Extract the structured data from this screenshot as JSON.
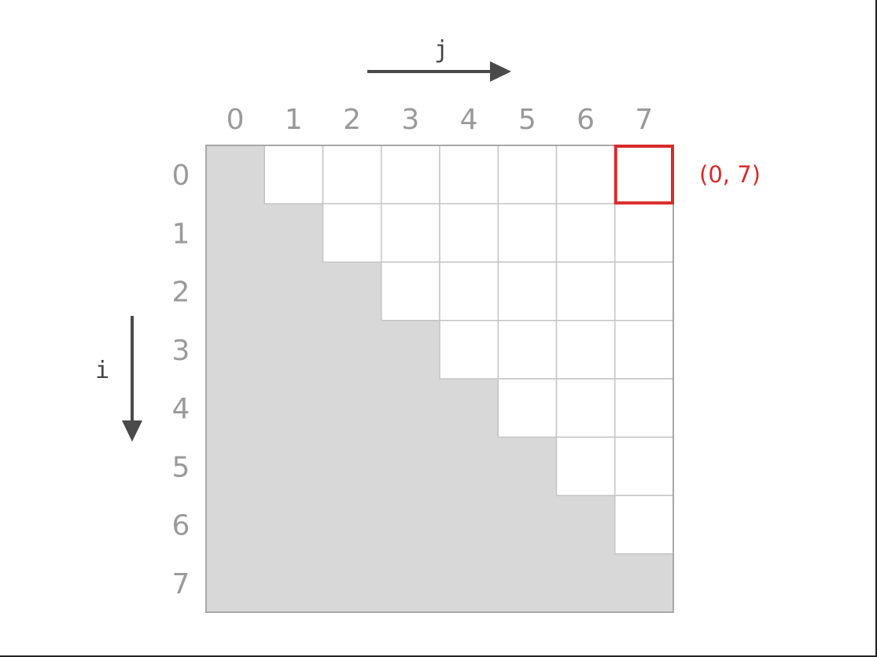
{
  "diagram": {
    "j_label": "j",
    "i_label": "i",
    "column_labels": [
      "0",
      "1",
      "2",
      "3",
      "4",
      "5",
      "6",
      "7"
    ],
    "row_labels": [
      "0",
      "1",
      "2",
      "3",
      "4",
      "5",
      "6",
      "7"
    ],
    "size": 8,
    "shaded_region": "lower triangle including diagonal",
    "highlight_cell": {
      "row": 0,
      "col": 7,
      "label": "(0, 7)"
    },
    "colors": {
      "shaded": "#d8d8d8",
      "grid": "#c4c4c4",
      "highlight": "#d92b2b",
      "labels": "#9a9a9a",
      "arrows": "#4a4a4a"
    }
  }
}
